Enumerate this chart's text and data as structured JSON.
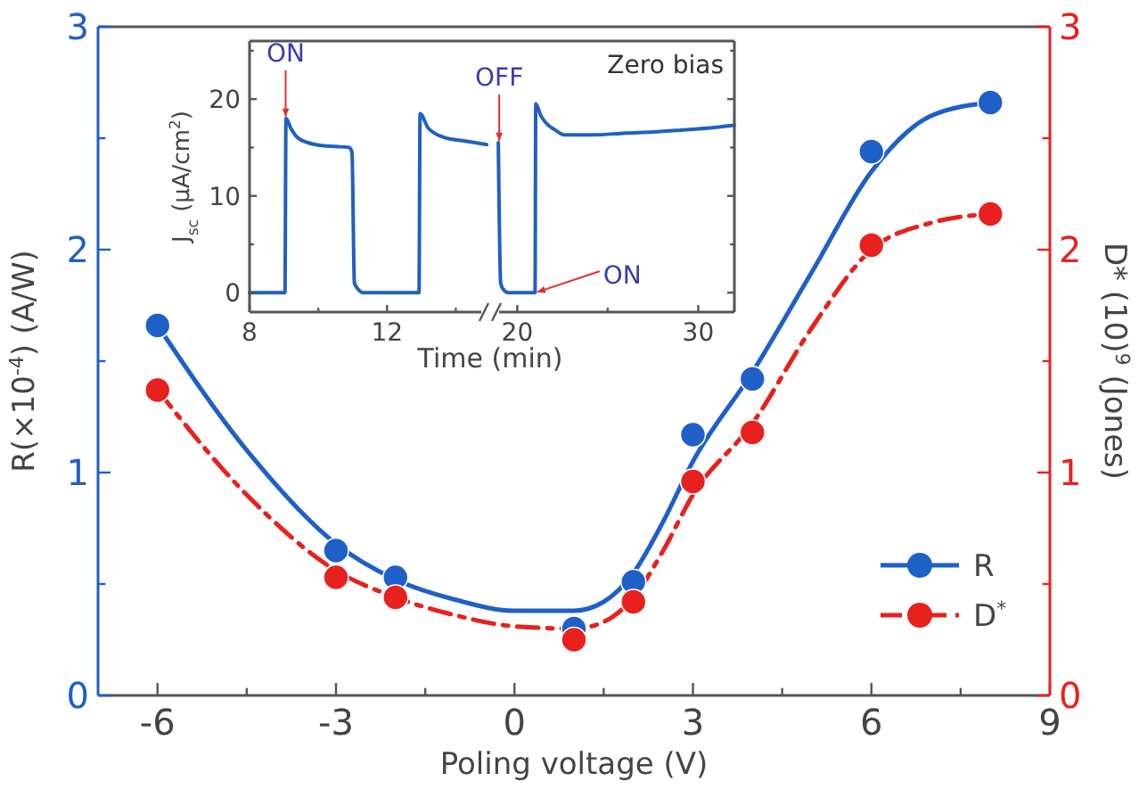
{
  "chart_data": [
    {
      "type": "scatter",
      "xlabel": "Poling voltage (V)",
      "ylabel": "R(×10$^{-4}$) (A/W)",
      "y2label": "D* (10)$^{9}$ (Jones)",
      "xlim": [
        -7,
        9
      ],
      "xticks": [
        -6,
        {
          "value": -4.5,
          "label": null
        },
        -3,
        {
          "value": -1.5,
          "label": null
        },
        0,
        {
          "value": 1.5,
          "label": null
        },
        3,
        {
          "value": 4.5,
          "label": null
        },
        6,
        {
          "value": 7.5,
          "label": null
        },
        9
      ],
      "ylim": [
        0,
        3
      ],
      "yticks": [
        0,
        {
          "value": 0.5,
          "label": null
        },
        1,
        {
          "value": 1.5,
          "label": null
        },
        2,
        {
          "value": 2.5,
          "label": null
        },
        3
      ],
      "y2lim": [
        0,
        3
      ],
      "y2ticks": [
        0,
        {
          "value": 0.5,
          "label": null
        },
        1,
        {
          "value": 1.5,
          "label": null
        },
        2,
        {
          "value": 2.5,
          "label": null
        },
        3
      ],
      "grid": false,
      "legend": "right",
      "marker": "circle",
      "series": [
        {
          "type": "line",
          "axis": "y",
          "color": "#1f5fc8",
          "line_style": "solid",
          "marker": "none",
          "x": [
            -6,
            -4.5,
            -3,
            -2,
            -1,
            0,
            1,
            1.5,
            2,
            2.5,
            3,
            4,
            5,
            6,
            7,
            8
          ],
          "values": [
            1.66,
            1.1,
            0.68,
            0.52,
            0.43,
            0.38,
            0.38,
            0.42,
            0.55,
            0.78,
            1.05,
            1.45,
            1.9,
            2.35,
            2.6,
            2.66
          ]
        },
        {
          "type": "line",
          "axis": "y2",
          "color": "#e8201e",
          "line_style": "dashed",
          "marker": "none",
          "x": [
            -6,
            -4.5,
            -3,
            -2,
            -1,
            0,
            1,
            1.5,
            2,
            2.5,
            3,
            4,
            5,
            6,
            7,
            8
          ],
          "values": [
            1.37,
            0.9,
            0.56,
            0.44,
            0.36,
            0.31,
            0.3,
            0.33,
            0.44,
            0.65,
            0.9,
            1.22,
            1.65,
            2.0,
            2.12,
            2.16
          ]
        },
        {
          "name": "R",
          "axis": "y",
          "color": "#1f5fc8",
          "x": [
            -6,
            -3,
            -2,
            1,
            2,
            3,
            4,
            6,
            8
          ],
          "values": [
            1.66,
            0.65,
            0.53,
            0.3,
            0.51,
            1.17,
            1.42,
            2.44,
            2.66
          ]
        },
        {
          "name": "D$^{*}$",
          "axis": "y2",
          "color": "#e8201e",
          "x": [
            -6,
            -3,
            -2,
            1,
            2,
            3,
            4,
            6,
            8
          ],
          "values": [
            1.37,
            0.53,
            0.44,
            0.25,
            0.42,
            0.96,
            1.18,
            2.02,
            2.16
          ]
        }
      ]
    },
    {
      "type": "line",
      "xlabel": "Time (min)",
      "ylabel": "J$_{sc}$ (μA/cm$^{2}$)",
      "xlim": [
        8,
        15
      ],
      "xticks": [
        8,
        {
          "value": 10,
          "label": null
        },
        12,
        {
          "value": 14,
          "label": null
        }
      ],
      "ylim": [
        -2,
        26
      ],
      "yticks": [
        0,
        {
          "value": 5,
          "label": null
        },
        10,
        {
          "value": 15,
          "label": null
        },
        20,
        {
          "value": 25,
          "label": null
        }
      ],
      "marker": "none",
      "grid": false,
      "legend": false,
      "annotations": [
        {
          "text": "ON",
          "x": 9.05,
          "y": 18
        }
      ],
      "series": [
        {
          "color": "#2060c0",
          "x": [
            8,
            9.03,
            9.06,
            9.2,
            9.4,
            9.7,
            10.1,
            10.5,
            10.9,
            10.98,
            11.05,
            11.15,
            11.3,
            12.93,
            12.96,
            13.2,
            13.7,
            14.2,
            14.9
          ],
          "values": [
            0,
            0,
            18,
            17,
            16,
            15.5,
            15.2,
            15.1,
            15,
            14.5,
            1,
            0.4,
            0,
            0,
            18.5,
            17,
            16,
            15.7,
            15.3
          ]
        }
      ]
    },
    {
      "type": "line",
      "xlim": [
        18.5,
        32
      ],
      "xticks": [
        20,
        {
          "value": 25,
          "label": null
        },
        30
      ],
      "ylim": [
        -2,
        26
      ],
      "yticks": [
        0,
        {
          "value": 5,
          "label": null
        },
        10,
        {
          "value": 15,
          "label": null
        },
        20,
        {
          "value": 25,
          "label": null
        }
      ],
      "tick_labels": "x",
      "marker": "none",
      "grid": false,
      "legend": false,
      "annotations": [
        {
          "text": "OFF",
          "x": 19.0,
          "y": 15.5
        },
        {
          "text": "ON",
          "x": 21.0,
          "y": 0
        },
        "Zero bias"
      ],
      "series": [
        {
          "color": "#2060c0",
          "x": [
            18.95,
            19.08,
            19.2,
            19.5,
            20.98,
            21.02,
            21.3,
            21.6,
            22.1,
            22.6,
            24.2,
            26,
            27.5,
            29.1,
            30.5,
            32
          ],
          "values": [
            15.5,
            1,
            0.4,
            0,
            0,
            19.5,
            18.3,
            17.5,
            16.8,
            16.3,
            16.3,
            16.5,
            16.6,
            16.8,
            17,
            17.3
          ]
        }
      ]
    }
  ]
}
